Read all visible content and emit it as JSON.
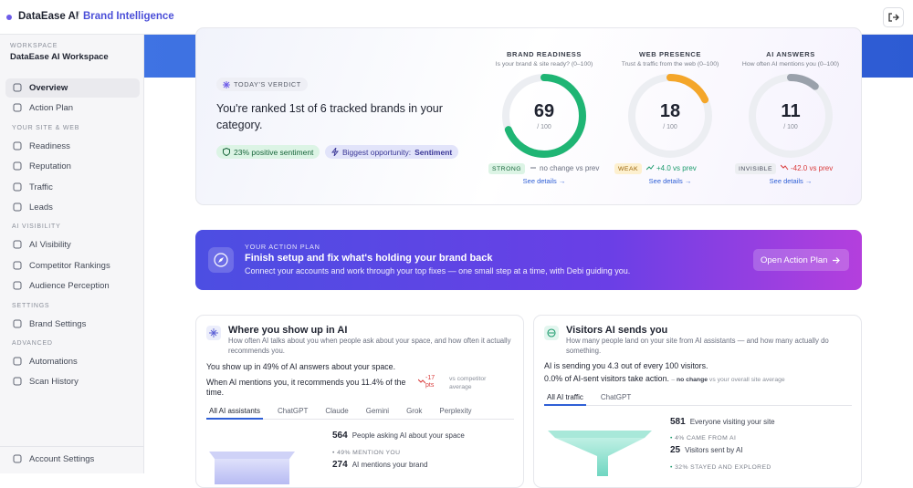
{
  "header": {
    "brand": "DataEase AI",
    "separator": "/",
    "product": "Brand Intelligence"
  },
  "sidebar": {
    "workspace_label": "WORKSPACE",
    "workspace_name": "DataEase AI Workspace",
    "top_items": [
      "Overview",
      "Action Plan"
    ],
    "groups": [
      {
        "heading": "YOUR SITE & WEB",
        "items": [
          "Readiness",
          "Reputation",
          "Traffic",
          "Leads"
        ]
      },
      {
        "heading": "AI VISIBILITY",
        "items": [
          "AI Visibility",
          "Competitor Rankings",
          "Audience Perception"
        ]
      },
      {
        "heading": "SETTINGS",
        "items": [
          "Brand Settings"
        ]
      },
      {
        "heading": "ADVANCED",
        "items": [
          "Automations",
          "Scan History"
        ]
      }
    ],
    "footer_item": "Account Settings"
  },
  "verdict": {
    "label": "TODAY'S VERDICT",
    "text": "You're ranked 1st of 6 tracked brands in your category.",
    "chip_sentiment": "23% positive sentiment",
    "chip_opportunity": {
      "prefix": "Biggest opportunity:",
      "emphasis": "Sentiment"
    }
  },
  "scores": [
    {
      "title": "BRAND READINESS",
      "subtitle": "Is your brand & site ready? (0–100)",
      "value": 69,
      "max": {
        "value": 100,
        "label": "/ 100"
      },
      "status": "STRONG",
      "delta": "no change vs prev",
      "link": "See details →",
      "color": "#1fb574"
    },
    {
      "title": "WEB PRESENCE",
      "subtitle": "Trust & traffic from the web (0–100)",
      "value": 18,
      "max": {
        "value": 100,
        "label": "/ 100"
      },
      "status": "WEAK",
      "delta": "+4.0 vs prev",
      "link": "See details →",
      "color": "#f4a62a"
    },
    {
      "title": "AI ANSWERS",
      "subtitle": "How often AI mentions you (0–100)",
      "value": 11,
      "max": {
        "value": 100,
        "label": "/ 100"
      },
      "status": "INVISIBLE",
      "delta": "-42.0 vs prev",
      "link": "See details →",
      "color": "#9aa1ab"
    }
  ],
  "action_plan": {
    "label": "YOUR ACTION PLAN",
    "title": "Finish setup and fix what's holding your brand back",
    "text": "Connect your accounts and work through your top fixes — one small step at a time, with Debi guiding you.",
    "button": "Open Action Plan"
  },
  "ai_presence": {
    "title": "Where you show up in AI",
    "description": "How often AI talks about you when people ask about your space, and how often it actually recommends you.",
    "line1": "You show up in 49% of AI answers about your space.",
    "line2": "When AI mentions you, it recommends you 11.4% of the time.",
    "delta": "-17 pts",
    "delta_note": "vs competitor average",
    "tabs": [
      "All AI assistants",
      "ChatGPT",
      "Claude",
      "Gemini",
      "Grok",
      "Perplexity"
    ],
    "funnel_top": {
      "value": 564,
      "label": "People asking AI about your space"
    },
    "funnel_note": "49% MENTION YOU",
    "funnel_bottom": {
      "value": 274,
      "label": "AI mentions your brand"
    }
  },
  "ai_visitors": {
    "title": "Visitors AI sends you",
    "description": "How many people land on your site from AI assistants — and how many actually do something.",
    "line1": "AI is sending you 4.3 out of every 100 visitors.",
    "line2": "0.0% of AI-sent visitors take action.",
    "line2_change": "no change",
    "line2_note": "vs your overall site average",
    "tabs": [
      "All AI traffic",
      "ChatGPT"
    ],
    "funnel_top": {
      "value": 581,
      "label": "Everyone visiting your site"
    },
    "funnel_note": "4% CAME FROM AI",
    "funnel_bottom": {
      "value": 25,
      "label": "Visitors sent by AI"
    },
    "funnel_note2": "32% STAYED AND EXPLORED"
  }
}
